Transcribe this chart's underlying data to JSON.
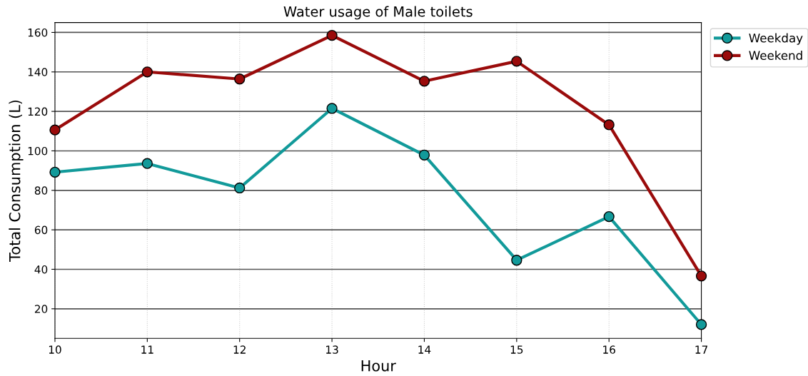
{
  "chart_data": {
    "type": "line",
    "title": "Water usage of Male toilets",
    "xlabel": "Hour",
    "ylabel": "Total Consumption (L)",
    "x": [
      10,
      11,
      12,
      13,
      14,
      15,
      16,
      17
    ],
    "series": [
      {
        "name": "Weekday",
        "color": "#129a9a",
        "values": [
          89.2,
          93.6,
          81.2,
          121.5,
          97.9,
          44.6,
          66.7,
          12
        ]
      },
      {
        "name": "Weekend",
        "color": "#9a0b0b",
        "values": [
          110.6,
          140,
          136.4,
          158.5,
          135.3,
          145.4,
          113.2,
          36.6
        ]
      }
    ],
    "xlim": [
      10,
      17
    ],
    "xticks": [
      10,
      11,
      12,
      13,
      14,
      15,
      16,
      17
    ],
    "ylim": [
      5,
      165
    ],
    "yticks": [
      20,
      40,
      60,
      80,
      100,
      120,
      140,
      160
    ],
    "grid": true,
    "legend": "top right",
    "marker": "circle",
    "line_style": "solid"
  }
}
